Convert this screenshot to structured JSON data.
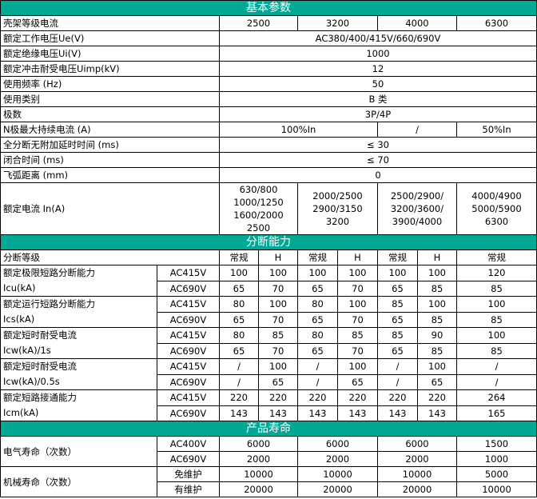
{
  "colors": {
    "section_header_bg": "#00a896",
    "section_header_text": "#ffffff"
  },
  "basic": {
    "title": "基本参数",
    "rows": [
      {
        "label": "壳架等级电流",
        "values": [
          "2500",
          "3200",
          "4000",
          "6300"
        ]
      },
      {
        "label": "额定工作电压Ue(V)",
        "values": [
          "AC380/400/415V/660/690V"
        ]
      },
      {
        "label": "额定绝缘电压Ui(V)",
        "values": [
          "1000"
        ]
      },
      {
        "label": "额定冲击耐受电压Uimp(kV)",
        "values": [
          "12"
        ]
      },
      {
        "label": "使用频率 (Hz)",
        "values": [
          "50"
        ]
      },
      {
        "label": "使用类别",
        "values": [
          "B 类"
        ]
      },
      {
        "label": "极数",
        "values": [
          "3P/4P"
        ]
      },
      {
        "label": "N极最大持续电流 (A)",
        "values": [
          "100%In",
          "/",
          "50%In"
        ]
      },
      {
        "label": "全分断无附加延时时间 (ms)",
        "values": [
          "≤ 30"
        ]
      },
      {
        "label": "闭合时间 (ms)",
        "values": [
          "≤ 70"
        ]
      },
      {
        "label": "飞弧距离 (mm)",
        "values": [
          "0"
        ]
      },
      {
        "label": "额定电流 In(A)",
        "values": [
          "630/800 1000/1250 1600/2000 2500",
          "2000/2500 2900/3150 3200",
          "2500/2900/ 3200/3600/ 3900/4000",
          "4000/4900 5000/5900 6300"
        ]
      }
    ]
  },
  "breaking": {
    "title": "分断能力",
    "header": {
      "label": "分断等级",
      "grades": [
        "常规",
        "H",
        "常规",
        "H",
        "常规",
        "H",
        "常规"
      ]
    },
    "groups": [
      {
        "label": [
          "额定极限短路分断能力",
          "Icu(kA)"
        ],
        "rows": [
          {
            "voltage": "AC415V",
            "values": [
              "100",
              "100",
              "100",
              "100",
              "100",
              "100",
              "120"
            ]
          },
          {
            "voltage": "AC690V",
            "values": [
              "65",
              "70",
              "65",
              "70",
              "65",
              "85",
              "85"
            ]
          }
        ]
      },
      {
        "label": [
          "额定运行短路分断能力",
          "Ics(kA)"
        ],
        "rows": [
          {
            "voltage": "AC415V",
            "values": [
              "80",
              "100",
              "80",
              "100",
              "85",
              "100",
              "100"
            ]
          },
          {
            "voltage": "AC690V",
            "values": [
              "65",
              "70",
              "65",
              "70",
              "65",
              "85",
              "85"
            ]
          }
        ]
      },
      {
        "label": [
          "额定短时耐受电流",
          "Icw(kA)/1s"
        ],
        "rows": [
          {
            "voltage": "AC415V",
            "values": [
              "80",
              "85",
              "80",
              "85",
              "85",
              "90",
              "100"
            ]
          },
          {
            "voltage": "AC690V",
            "values": [
              "65",
              "70",
              "65",
              "70",
              "65",
              "85",
              "85"
            ]
          }
        ]
      },
      {
        "label": [
          "额定短时耐受电流",
          "Icw(kA)/0.5s"
        ],
        "rows": [
          {
            "voltage": "AC415V",
            "values": [
              "/",
              "100",
              "/",
              "100",
              "/",
              "100",
              "/"
            ]
          },
          {
            "voltage": "AC690V",
            "values": [
              "/",
              "65",
              "/",
              "65",
              "/",
              "65",
              "/"
            ]
          }
        ]
      },
      {
        "label": [
          "额定短路接通能力",
          "Icm(kA)"
        ],
        "rows": [
          {
            "voltage": "AC415V",
            "values": [
              "220",
              "220",
              "220",
              "220",
              "220",
              "220",
              "264"
            ]
          },
          {
            "voltage": "AC690V",
            "values": [
              "143",
              "143",
              "143",
              "143",
              "143",
              "143",
              "165"
            ]
          }
        ]
      }
    ]
  },
  "life": {
    "title": "产品寿命",
    "groups": [
      {
        "label": "电气寿命（次数）",
        "rows": [
          {
            "sub": "AC400V",
            "values": [
              "6000",
              "6000",
              "6000",
              "1500"
            ]
          },
          {
            "sub": "AC690V",
            "values": [
              "2000",
              "2000",
              "2000",
              "1000"
            ]
          }
        ]
      },
      {
        "label": "机械寿命（次数）",
        "rows": [
          {
            "sub": "免维护",
            "values": [
              "10000",
              "10000",
              "10000",
              "5000"
            ]
          },
          {
            "sub": "有维护",
            "values": [
              "20000",
              "20000",
              "20000",
              "10000"
            ]
          }
        ]
      }
    ]
  }
}
